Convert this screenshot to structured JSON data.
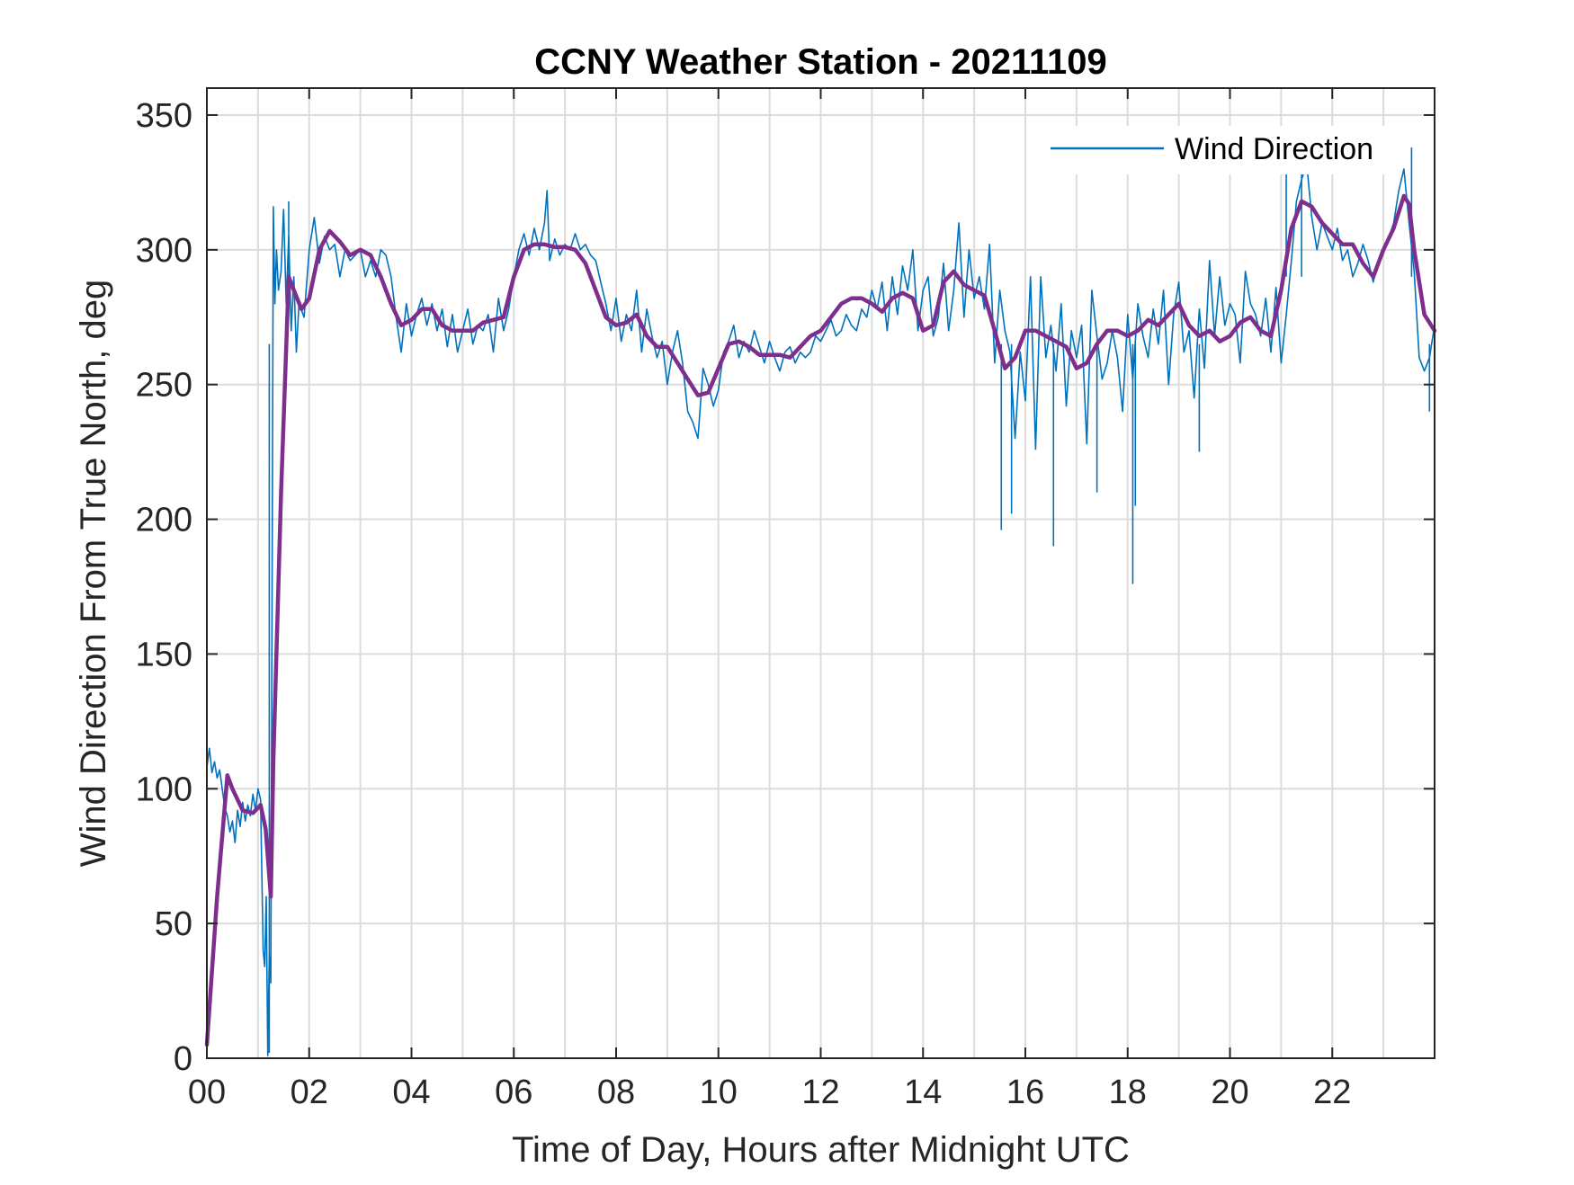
{
  "chart_data": {
    "type": "line",
    "title": "CCNY Weather Station - 20211109",
    "xlabel": "Time of Day, Hours after Midnight UTC",
    "ylabel": "Wind Direction From True North, deg",
    "xlim": [
      0,
      24
    ],
    "ylim": [
      0,
      360
    ],
    "x_ticks": [
      0,
      2,
      4,
      6,
      8,
      10,
      12,
      14,
      16,
      18,
      20,
      22
    ],
    "x_tick_labels": [
      "00",
      "02",
      "04",
      "06",
      "08",
      "10",
      "12",
      "14",
      "16",
      "18",
      "20",
      "22"
    ],
    "y_ticks": [
      0,
      50,
      100,
      150,
      200,
      250,
      300,
      350
    ],
    "y_tick_labels": [
      "0",
      "50",
      "100",
      "150",
      "200",
      "250",
      "300",
      "350"
    ],
    "grid": true,
    "legend": {
      "position": "top-right",
      "entries": [
        "Wind Direction"
      ]
    },
    "series": [
      {
        "name": "Wind Direction",
        "color": "#0072BD",
        "x": [
          0.0,
          0.05,
          0.1,
          0.15,
          0.2,
          0.25,
          0.3,
          0.35,
          0.4,
          0.45,
          0.5,
          0.55,
          0.6,
          0.65,
          0.7,
          0.75,
          0.8,
          0.85,
          0.9,
          0.95,
          1.0,
          1.05,
          1.1,
          1.13,
          1.16,
          1.19,
          1.22,
          1.25,
          1.3,
          1.33,
          1.36,
          1.4,
          1.45,
          1.5,
          1.55,
          1.6,
          1.65,
          1.7,
          1.75,
          1.8,
          1.9,
          2.0,
          2.1,
          2.2,
          2.3,
          2.4,
          2.5,
          2.6,
          2.7,
          2.8,
          2.9,
          3.0,
          3.1,
          3.2,
          3.3,
          3.4,
          3.5,
          3.6,
          3.7,
          3.8,
          3.9,
          4.0,
          4.1,
          4.2,
          4.3,
          4.4,
          4.5,
          4.6,
          4.7,
          4.8,
          4.9,
          5.0,
          5.1,
          5.2,
          5.3,
          5.4,
          5.5,
          5.6,
          5.7,
          5.8,
          5.9,
          6.0,
          6.1,
          6.2,
          6.3,
          6.4,
          6.5,
          6.6,
          6.65,
          6.7,
          6.8,
          6.9,
          7.0,
          7.1,
          7.2,
          7.3,
          7.4,
          7.5,
          7.6,
          7.7,
          7.8,
          7.9,
          8.0,
          8.1,
          8.2,
          8.3,
          8.4,
          8.5,
          8.6,
          8.7,
          8.8,
          8.9,
          9.0,
          9.1,
          9.2,
          9.3,
          9.4,
          9.5,
          9.6,
          9.7,
          9.8,
          9.9,
          10.0,
          10.1,
          10.2,
          10.3,
          10.4,
          10.5,
          10.6,
          10.7,
          10.8,
          10.9,
          11.0,
          11.1,
          11.2,
          11.3,
          11.4,
          11.5,
          11.6,
          11.7,
          11.8,
          11.9,
          12.0,
          12.1,
          12.2,
          12.3,
          12.4,
          12.5,
          12.6,
          12.7,
          12.8,
          12.9,
          13.0,
          13.1,
          13.2,
          13.3,
          13.4,
          13.5,
          13.6,
          13.7,
          13.8,
          13.9,
          14.0,
          14.1,
          14.2,
          14.3,
          14.4,
          14.5,
          14.6,
          14.7,
          14.8,
          14.9,
          15.0,
          15.1,
          15.2,
          15.3,
          15.4,
          15.5,
          15.6,
          15.7,
          15.8,
          15.9,
          16.0,
          16.1,
          16.2,
          16.3,
          16.4,
          16.5,
          16.6,
          16.7,
          16.8,
          16.9,
          17.0,
          17.1,
          17.2,
          17.3,
          17.4,
          17.5,
          17.6,
          17.7,
          17.8,
          17.9,
          18.0,
          18.1,
          18.2,
          18.3,
          18.4,
          18.5,
          18.6,
          18.7,
          18.8,
          18.9,
          19.0,
          19.1,
          19.2,
          19.3,
          19.4,
          19.5,
          19.6,
          19.7,
          19.8,
          19.9,
          20.0,
          20.1,
          20.2,
          20.3,
          20.4,
          20.5,
          20.6,
          20.7,
          20.8,
          20.9,
          21.0,
          21.1,
          21.2,
          21.3,
          21.4,
          21.5,
          21.6,
          21.7,
          21.8,
          21.9,
          22.0,
          22.1,
          22.2,
          22.3,
          22.4,
          22.5,
          22.6,
          22.7,
          22.8,
          22.9,
          23.0,
          23.1,
          23.2,
          23.3,
          23.4,
          23.5,
          23.6,
          23.7,
          23.8,
          23.9,
          24.0
        ],
        "y": [
          108,
          115,
          106,
          110,
          104,
          107,
          100,
          93,
          90,
          84,
          88,
          80,
          92,
          86,
          95,
          88,
          94,
          90,
          98,
          92,
          100,
          96,
          40,
          34,
          60,
          1,
          38,
          28,
          316,
          280,
          300,
          285,
          292,
          315,
          280,
          305,
          270,
          290,
          262,
          280,
          275,
          300,
          312,
          295,
          305,
          300,
          302,
          290,
          300,
          296,
          298,
          300,
          290,
          296,
          290,
          300,
          298,
          290,
          275,
          262,
          280,
          268,
          276,
          282,
          272,
          280,
          270,
          278,
          264,
          276,
          262,
          270,
          278,
          265,
          272,
          270,
          276,
          262,
          282,
          270,
          278,
          290,
          300,
          306,
          298,
          308,
          300,
          310,
          322,
          296,
          304,
          298,
          302,
          300,
          306,
          300,
          302,
          298,
          296,
          288,
          280,
          270,
          282,
          266,
          276,
          270,
          285,
          262,
          278,
          268,
          260,
          266,
          250,
          262,
          270,
          258,
          240,
          236,
          230,
          256,
          250,
          242,
          248,
          262,
          266,
          272,
          260,
          266,
          262,
          270,
          264,
          258,
          266,
          260,
          255,
          262,
          264,
          258,
          262,
          260,
          262,
          268,
          266,
          270,
          274,
          268,
          270,
          276,
          272,
          270,
          278,
          275,
          285,
          278,
          288,
          270,
          290,
          276,
          294,
          285,
          300,
          270,
          285,
          290,
          268,
          275,
          295,
          270,
          285,
          310,
          275,
          300,
          282,
          290,
          278,
          302,
          258,
          285,
          270,
          262,
          230,
          262,
          244,
          290,
          226,
          290,
          260,
          272,
          255,
          280,
          242,
          270,
          260,
          272,
          228,
          285,
          268,
          252,
          258,
          270,
          260,
          240,
          276,
          252,
          280,
          268,
          260,
          278,
          265,
          285,
          250,
          276,
          288,
          262,
          270,
          245,
          278,
          256,
          296,
          268,
          290,
          272,
          280,
          276,
          258,
          292,
          280,
          276,
          268,
          282,
          262,
          286,
          258,
          276,
          296,
          318,
          326,
          332,
          312,
          300,
          310,
          305,
          300,
          308,
          296,
          300,
          290,
          295,
          302,
          296,
          288,
          296,
          300,
          304,
          310,
          322,
          330,
          310,
          292,
          260,
          255,
          260,
          272
        ],
        "spikes": [
          [
            1.22,
            2
          ],
          [
            1.6,
            318
          ],
          [
            15.53,
            196
          ],
          [
            15.73,
            202
          ],
          [
            16.55,
            190
          ],
          [
            17.4,
            210
          ],
          [
            18.1,
            176
          ],
          [
            18.15,
            205
          ],
          [
            19.4,
            225
          ],
          [
            21.4,
            328
          ],
          [
            21.1,
            340
          ],
          [
            23.55,
            338
          ],
          [
            23.9,
            240
          ]
        ]
      },
      {
        "name": "",
        "color": "#7E2F8E",
        "x": [
          0.0,
          0.2,
          0.4,
          0.5,
          0.7,
          0.9,
          1.05,
          1.15,
          1.25,
          1.3,
          1.45,
          1.6,
          1.7,
          1.85,
          2.0,
          2.2,
          2.4,
          2.6,
          2.8,
          3.0,
          3.2,
          3.4,
          3.6,
          3.8,
          4.0,
          4.2,
          4.4,
          4.6,
          4.8,
          5.0,
          5.2,
          5.4,
          5.6,
          5.8,
          6.0,
          6.2,
          6.4,
          6.6,
          6.8,
          7.0,
          7.2,
          7.4,
          7.6,
          7.8,
          8.0,
          8.2,
          8.4,
          8.6,
          8.8,
          9.0,
          9.2,
          9.4,
          9.6,
          9.8,
          10.0,
          10.2,
          10.4,
          10.6,
          10.8,
          11.0,
          11.2,
          11.4,
          11.6,
          11.8,
          12.0,
          12.2,
          12.4,
          12.6,
          12.8,
          13.0,
          13.2,
          13.4,
          13.6,
          13.8,
          14.0,
          14.2,
          14.4,
          14.6,
          14.8,
          15.0,
          15.2,
          15.4,
          15.6,
          15.8,
          16.0,
          16.2,
          16.4,
          16.6,
          16.8,
          17.0,
          17.2,
          17.4,
          17.6,
          17.8,
          18.0,
          18.2,
          18.4,
          18.6,
          18.8,
          19.0,
          19.2,
          19.4,
          19.6,
          19.8,
          20.0,
          20.2,
          20.4,
          20.6,
          20.8,
          21.0,
          21.2,
          21.4,
          21.6,
          21.8,
          22.0,
          22.2,
          22.4,
          22.6,
          22.8,
          23.0,
          23.2,
          23.4,
          23.5,
          23.6,
          23.8,
          24.0
        ],
        "y": [
          5,
          60,
          105,
          100,
          92,
          91,
          94,
          85,
          60,
          110,
          210,
          290,
          285,
          278,
          282,
          300,
          307,
          303,
          298,
          300,
          298,
          290,
          280,
          272,
          274,
          278,
          278,
          272,
          270,
          270,
          270,
          273,
          274,
          275,
          290,
          300,
          302,
          302,
          301,
          301,
          300,
          295,
          285,
          275,
          272,
          273,
          276,
          268,
          264,
          264,
          258,
          252,
          246,
          247,
          256,
          265,
          266,
          264,
          261,
          261,
          261,
          260,
          264,
          268,
          270,
          275,
          280,
          282,
          282,
          280,
          277,
          282,
          284,
          282,
          270,
          272,
          288,
          292,
          287,
          285,
          283,
          270,
          256,
          260,
          270,
          270,
          268,
          266,
          264,
          256,
          258,
          265,
          270,
          270,
          268,
          270,
          274,
          272,
          276,
          280,
          272,
          268,
          270,
          266,
          268,
          273,
          275,
          270,
          268,
          285,
          308,
          318,
          316,
          310,
          306,
          302,
          302,
          295,
          290,
          300,
          308,
          320,
          317,
          300,
          276,
          270
        ]
      }
    ]
  }
}
